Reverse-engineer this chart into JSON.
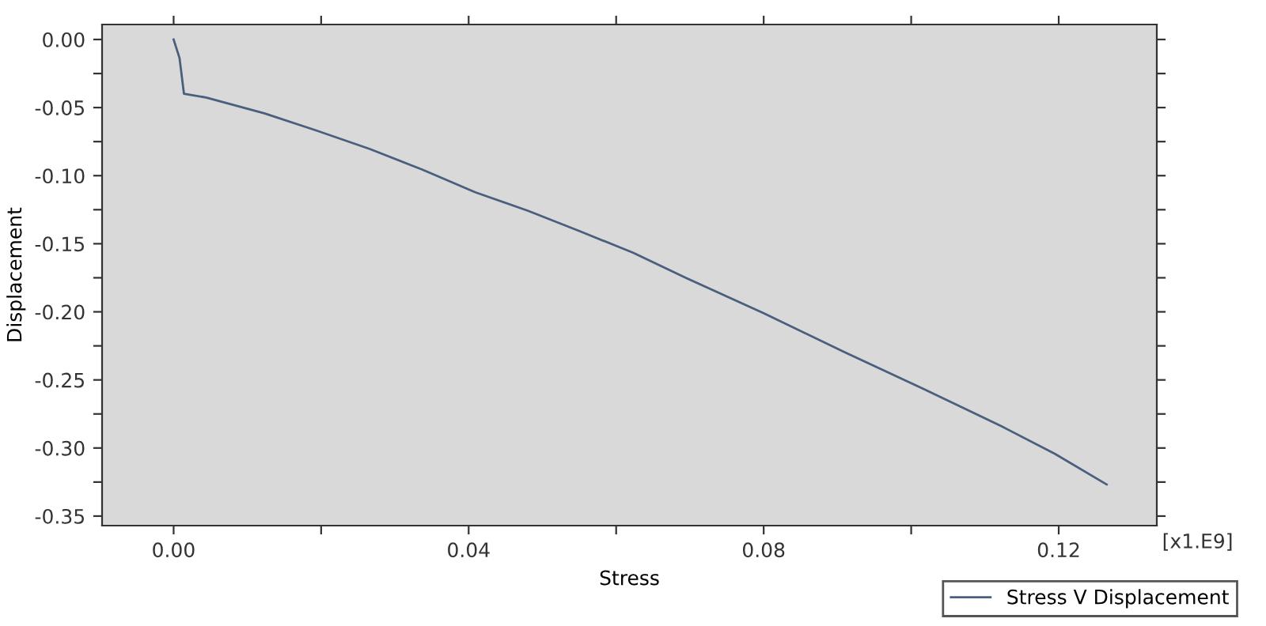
{
  "chart_data": {
    "type": "line",
    "xlabel": "Stress",
    "ylabel": "Displacement",
    "annotations": [
      "[x1.E9]"
    ],
    "series": [
      {
        "name": "Stress V Displacement",
        "color": "#4a5f7e",
        "x": [
          0,
          0.0008,
          0.0014,
          0.0044,
          0.0123,
          0.0194,
          0.0266,
          0.0337,
          0.0409,
          0.048,
          0.0552,
          0.0623,
          0.0695,
          0.08,
          0.0909,
          0.1016,
          0.1123,
          0.1195,
          0.1265
        ],
        "values": [
          0,
          -0.0136,
          -0.0398,
          -0.0426,
          -0.0542,
          -0.0669,
          -0.0804,
          -0.0955,
          -0.1122,
          -0.1257,
          -0.1411,
          -0.1566,
          -0.1752,
          -0.201,
          -0.2294,
          -0.2564,
          -0.2842,
          -0.3043,
          -0.3268
        ]
      }
    ],
    "xlim": [
      -0.0097,
      0.1333
    ],
    "ylim": [
      -0.357,
      0.011
    ],
    "xticks": [
      {
        "value": 0,
        "label": "0.00"
      },
      {
        "value": 0.02,
        "label": null
      },
      {
        "value": 0.04,
        "label": "0.04"
      },
      {
        "value": 0.06,
        "label": null
      },
      {
        "value": 0.08,
        "label": "0.08"
      },
      {
        "value": 0.1,
        "label": null
      },
      {
        "value": 0.12,
        "label": "0.12"
      }
    ],
    "yticks": [
      {
        "value": 0,
        "label": "0.00"
      },
      {
        "value": -0.025,
        "label": null
      },
      {
        "value": -0.05,
        "label": "-0.05"
      },
      {
        "value": -0.075,
        "label": null
      },
      {
        "value": -0.1,
        "label": "-0.10"
      },
      {
        "value": -0.125,
        "label": null
      },
      {
        "value": -0.15,
        "label": "-0.15"
      },
      {
        "value": -0.175,
        "label": null
      },
      {
        "value": -0.2,
        "label": "-0.20"
      },
      {
        "value": -0.225,
        "label": null
      },
      {
        "value": -0.25,
        "label": "-0.25"
      },
      {
        "value": -0.275,
        "label": null
      },
      {
        "value": -0.3,
        "label": "-0.30"
      },
      {
        "value": -0.325,
        "label": null
      },
      {
        "value": -0.35,
        "label": "-0.35"
      }
    ],
    "grid": false,
    "legend": "bottom right",
    "marker": "none",
    "line_style": "solid"
  }
}
